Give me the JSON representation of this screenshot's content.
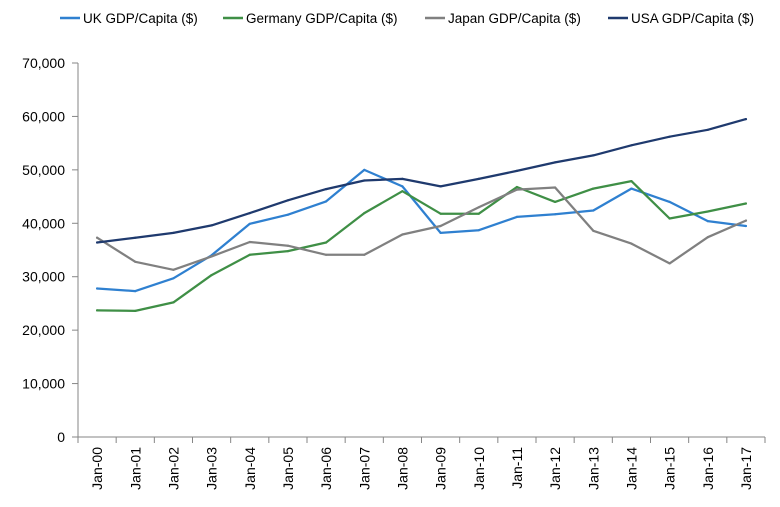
{
  "chart_data": {
    "type": "line",
    "categories": [
      "Jan-00",
      "Jan-01",
      "Jan-02",
      "Jan-03",
      "Jan-04",
      "Jan-05",
      "Jan-06",
      "Jan-07",
      "Jan-08",
      "Jan-09",
      "Jan-10",
      "Jan-11",
      "Jan-12",
      "Jan-13",
      "Jan-14",
      "Jan-15",
      "Jan-16",
      "Jan-17"
    ],
    "y_ticks": [
      "0",
      "10,000",
      "20,000",
      "30,000",
      "40,000",
      "50,000",
      "60,000",
      "70,000"
    ],
    "ylim": [
      0,
      70000
    ],
    "grid": false,
    "legend_position": "top",
    "series": [
      {
        "name": "UK GDP/Capita ($)",
        "color": "#2f80d0",
        "values": [
          27800,
          27300,
          29700,
          34000,
          39900,
          41600,
          44100,
          50000,
          46900,
          38200,
          38700,
          41200,
          41700,
          42400,
          46500,
          44000,
          40400,
          39500
        ]
      },
      {
        "name": "Germany GDP/Capita ($)",
        "color": "#3f8f46",
        "values": [
          23700,
          23600,
          25200,
          30300,
          34100,
          34800,
          36400,
          41900,
          46000,
          41800,
          41800,
          46800,
          44000,
          46500,
          47900,
          40900,
          42200,
          43700
        ]
      },
      {
        "name": "Japan GDP/Capita ($)",
        "color": "#808080",
        "values": [
          37300,
          32800,
          31300,
          33800,
          36500,
          35800,
          34100,
          34100,
          37900,
          39500,
          43000,
          46300,
          46700,
          38600,
          36200,
          32500,
          37400,
          40500
        ]
      },
      {
        "name": "USA GDP/Capita ($)",
        "color": "#1f3a6e",
        "values": [
          36400,
          37300,
          38200,
          39600,
          41900,
          44300,
          46400,
          48000,
          48300,
          46900,
          48300,
          49800,
          51400,
          52700,
          54600,
          56200,
          57500,
          59500
        ]
      }
    ]
  }
}
